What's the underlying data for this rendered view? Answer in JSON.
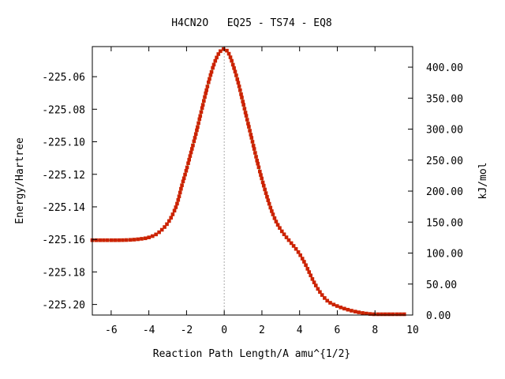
{
  "chart_data": {
    "type": "line",
    "title": "H4CN2O   EQ25 - TS74 - EQ8",
    "xlabel": "Reaction Path Length/A amu^{1/2}",
    "ylabel": "Energy/Hartree",
    "y2label": "kJ/mol",
    "xlim": [
      -7.0,
      10.0
    ],
    "ylim": [
      -225.2065,
      -225.0415
    ],
    "y2lim": [
      0,
      433.2
    ],
    "x_ticks": [
      -6,
      -4,
      -2,
      0,
      2,
      4,
      6,
      8,
      10
    ],
    "y_ticks": [
      -225.06,
      -225.08,
      -225.1,
      -225.12,
      -225.14,
      -225.16,
      -225.18,
      -225.2
    ],
    "y2_ticks": [
      0,
      50,
      100,
      150,
      200,
      250,
      300,
      350,
      400
    ],
    "y_tick_labels": [
      "-225.06",
      "-225.08",
      "-225.10",
      "-225.12",
      "-225.14",
      "-225.16",
      "-225.18",
      "-225.20"
    ],
    "y2_tick_labels": [
      "0.00",
      "50.00",
      "100.00",
      "150.00",
      "200.00",
      "250.00",
      "300.00",
      "350.00",
      "400.00"
    ],
    "x_tick_labels": [
      "-6",
      "-4",
      "-2",
      "0",
      "2",
      "4",
      "6",
      "8",
      "10"
    ],
    "vertical_reference_line": 0,
    "grid": false,
    "colors": {
      "line": "#00aa00",
      "markers": "#cc2200",
      "reference": "#aaaaaa",
      "axes": "#000000"
    },
    "series": [
      {
        "points": [
          [
            -7.0,
            -225.1605
          ],
          [
            -6.0,
            -225.1605
          ],
          [
            -5.0,
            -225.1603
          ],
          [
            -4.5,
            -225.1598
          ],
          [
            -4.0,
            -225.1588
          ],
          [
            -3.5,
            -225.156
          ],
          [
            -3.0,
            -225.15
          ],
          [
            -2.75,
            -225.145
          ],
          [
            -2.5,
            -225.138
          ],
          [
            -2.25,
            -225.127
          ],
          [
            -2.0,
            -225.117
          ],
          [
            -1.75,
            -225.106
          ],
          [
            -1.5,
            -225.095
          ],
          [
            -1.25,
            -225.083
          ],
          [
            -1.0,
            -225.071
          ],
          [
            -0.75,
            -225.06
          ],
          [
            -0.5,
            -225.051
          ],
          [
            -0.25,
            -225.045
          ],
          [
            0.0,
            -225.043
          ],
          [
            0.25,
            -225.046
          ],
          [
            0.5,
            -225.054
          ],
          [
            0.75,
            -225.064
          ],
          [
            1.0,
            -225.076
          ],
          [
            1.25,
            -225.088
          ],
          [
            1.5,
            -225.1
          ],
          [
            1.75,
            -225.112
          ],
          [
            2.0,
            -225.123
          ],
          [
            2.25,
            -225.133
          ],
          [
            2.5,
            -225.142
          ],
          [
            2.75,
            -225.149
          ],
          [
            3.0,
            -225.154
          ],
          [
            3.25,
            -225.158
          ],
          [
            3.5,
            -225.1615
          ],
          [
            3.75,
            -225.165
          ],
          [
            4.0,
            -225.169
          ],
          [
            4.25,
            -225.174
          ],
          [
            4.5,
            -225.18
          ],
          [
            4.75,
            -225.186
          ],
          [
            5.0,
            -225.191
          ],
          [
            5.25,
            -225.195
          ],
          [
            5.5,
            -225.198
          ],
          [
            6.0,
            -225.201
          ],
          [
            6.5,
            -225.203
          ],
          [
            7.0,
            -225.2045
          ],
          [
            7.5,
            -225.2055
          ],
          [
            8.0,
            -225.206
          ],
          [
            9.0,
            -225.206
          ],
          [
            9.6,
            -225.206
          ]
        ]
      }
    ]
  }
}
